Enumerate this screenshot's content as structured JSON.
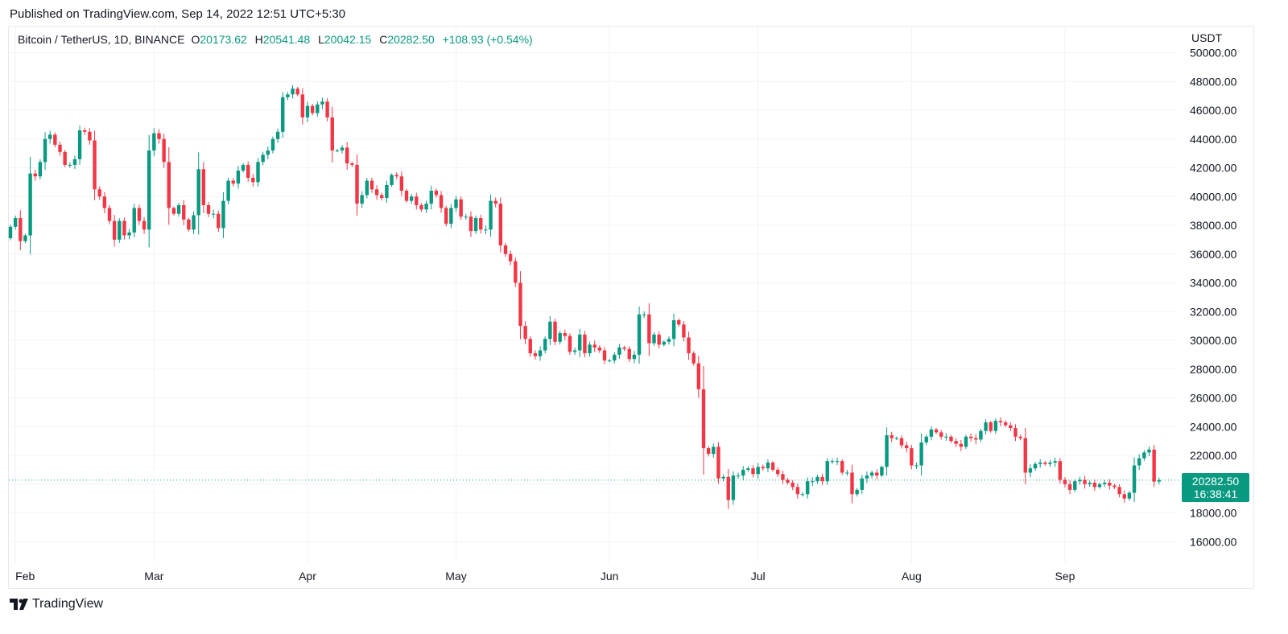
{
  "header": {
    "published": "Published on TradingView.com, Sep 14, 2022 12:51 UTC+5:30"
  },
  "legend": {
    "symbol": "Bitcoin / TetherUS, 1D, BINANCE",
    "o_label": "O",
    "open": "20173.62",
    "h_label": "H",
    "high": "20541.48",
    "l_label": "L",
    "low": "20042.15",
    "c_label": "C",
    "close": "20282.50",
    "change": "+108.93 (+0.54%)"
  },
  "axis": {
    "unit": "USDT"
  },
  "last_price": {
    "value": "20282.50",
    "countdown": "16:38:41"
  },
  "footer": {
    "brand": "TradingView"
  },
  "colors": {
    "up": "#089981",
    "down": "#f23645",
    "grid": "#f0f3fa",
    "text": "#131722"
  },
  "chart_data": {
    "type": "candlestick",
    "series_name": "Bitcoin / TetherUS, 1D, BINANCE",
    "y_axis": {
      "unit": "USDT",
      "ylim": [
        15000,
        51000
      ],
      "ticks": [
        16000,
        18000,
        20000,
        22000,
        24000,
        26000,
        28000,
        30000,
        32000,
        34000,
        36000,
        38000,
        40000,
        42000,
        44000,
        46000,
        48000,
        50000
      ],
      "tick_labels": [
        "16000.00",
        "18000.00",
        "20000.00",
        "22000.00",
        "24000.00",
        "26000.00",
        "28000.00",
        "30000.00",
        "32000.00",
        "34000.00",
        "36000.00",
        "38000.00",
        "40000.00",
        "42000.00",
        "44000.00",
        "46000.00",
        "48000.00",
        "50000.00"
      ]
    },
    "x_axis": {
      "start_date": "2022-01-31",
      "end_date": "2022-09-14",
      "tick_labels": [
        {
          "label": "Feb",
          "date": "2022-02-01"
        },
        {
          "label": "Mar",
          "date": "2022-03-01"
        },
        {
          "label": "Apr",
          "date": "2022-04-01"
        },
        {
          "label": "May",
          "date": "2022-05-01"
        },
        {
          "label": "Jun",
          "date": "2022-06-01"
        },
        {
          "label": "Jul",
          "date": "2022-07-01"
        },
        {
          "label": "Aug",
          "date": "2022-08-01"
        },
        {
          "label": "Sep",
          "date": "2022-09-01"
        }
      ]
    },
    "grid": true,
    "last_close": 20282.5,
    "closes": [
      37900,
      38500,
      36900,
      37300,
      41600,
      41400,
      42400,
      44000,
      44300,
      43600,
      43100,
      42200,
      42200,
      42600,
      44600,
      44500,
      43900,
      40500,
      40000,
      39200,
      38300,
      37000,
      38300,
      37300,
      37500,
      39200,
      38300,
      37700,
      43200,
      44400,
      44000,
      42400,
      39200,
      38800,
      39400,
      38400,
      37700,
      38700,
      41900,
      39400,
      38800,
      38800,
      37800,
      39700,
      41100,
      40900,
      41800,
      42200,
      41300,
      41000,
      42400,
      42900,
      43200,
      44000,
      44500,
      46900,
      47100,
      47500,
      47100,
      45500,
      46300,
      45800,
      46400,
      46600,
      45500,
      43200,
      43200,
      43400,
      42300,
      42200,
      39500,
      40100,
      41100,
      40500,
      40100,
      39900,
      40800,
      41500,
      41400,
      40400,
      39700,
      40000,
      39400,
      39100,
      39500,
      40400,
      40100,
      39200,
      38100,
      39200,
      39800,
      38600,
      38600,
      37600,
      38500,
      37700,
      37700,
      39700,
      39500,
      36600,
      36000,
      35500,
      34000,
      31000,
      30100,
      29100,
      28900,
      29300,
      30100,
      31300,
      29900,
      30500,
      30300,
      29200,
      29300,
      30400,
      29100,
      29700,
      29500,
      29300,
      28600,
      28600,
      29000,
      29500,
      29400,
      28700,
      29000,
      31800,
      31800,
      29800,
      30400,
      29700,
      29900,
      30100,
      31400,
      31100,
      30200,
      29100,
      28400,
      26600,
      22500,
      22100,
      22600,
      20400,
      20500,
      18900,
      20600,
      20600,
      21000,
      21100,
      20700,
      21200,
      21100,
      21500,
      21000,
      20700,
      20300,
      20100,
      19800,
      19300,
      19300,
      20200,
      20200,
      20500,
      20200,
      21600,
      21600,
      21600,
      20800,
      20800,
      19300,
      19600,
      20400,
      20600,
      20800,
      20600,
      21200,
      23400,
      23200,
      23200,
      22700,
      22500,
      21300,
      21300,
      22900,
      23300,
      23800,
      23600,
      23300,
      23300,
      23000,
      22800,
      22600,
      23300,
      23200,
      23100,
      23700,
      24300,
      23700,
      24400,
      24300,
      24100,
      23900,
      23300,
      23200,
      20800,
      21100,
      21400,
      21500,
      21400,
      21500,
      21600,
      20300,
      20000,
      19600,
      20200,
      20300,
      20000,
      20100,
      19800,
      20000,
      20100,
      19900,
      19800,
      19300,
      19000,
      19400,
      21300,
      21800,
      22200,
      22400,
      20173.62,
      20282.5
    ]
  }
}
